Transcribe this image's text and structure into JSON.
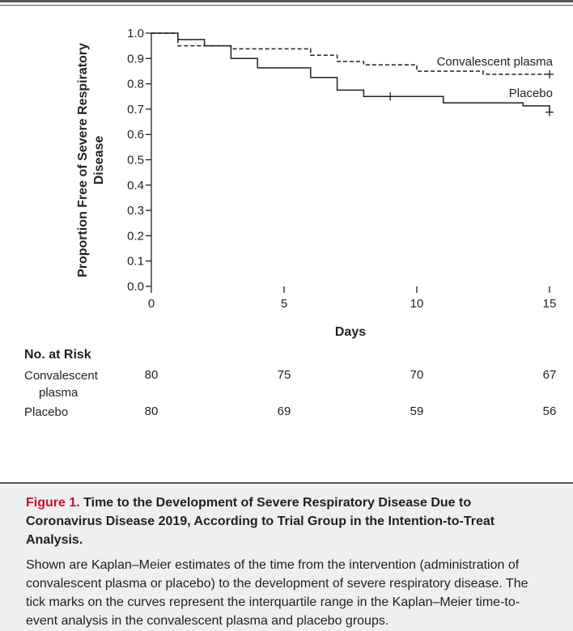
{
  "chart_data": {
    "type": "line",
    "subtype": "kaplan-meier step curves",
    "xlabel": "Days",
    "ylabel": "Proportion Free of Severe Respiratory Disease",
    "xlim": [
      0,
      15
    ],
    "ylim": [
      0,
      1.0
    ],
    "x_ticks": [
      "0",
      "5",
      "10",
      "15"
    ],
    "y_ticks": [
      "0.0",
      "0.1",
      "0.2",
      "0.3",
      "0.4",
      "0.5",
      "0.6",
      "0.7",
      "0.8",
      "0.9",
      "1.0"
    ],
    "grid": false,
    "series": [
      {
        "name": "Convalescent plasma",
        "style": "dashed",
        "color": "#231f20",
        "steps": [
          [
            0,
            1.0
          ],
          [
            1,
            0.95
          ],
          [
            3,
            0.938
          ],
          [
            6,
            0.913
          ],
          [
            7,
            0.888
          ],
          [
            8,
            0.875
          ],
          [
            10,
            0.85
          ],
          [
            12.5,
            0.838
          ],
          [
            15,
            0.838
          ]
        ],
        "censor_marks": [
          [
            15,
            0.838
          ]
        ]
      },
      {
        "name": "Placebo",
        "style": "solid",
        "color": "#231f20",
        "steps": [
          [
            0,
            1.0
          ],
          [
            1,
            0.975
          ],
          [
            2,
            0.95
          ],
          [
            3,
            0.9
          ],
          [
            4,
            0.863
          ],
          [
            6,
            0.825
          ],
          [
            7,
            0.775
          ],
          [
            8,
            0.75
          ],
          [
            11,
            0.725
          ],
          [
            14,
            0.713
          ],
          [
            15,
            0.688
          ]
        ],
        "censor_marks": [
          [
            9,
            0.75
          ],
          [
            15,
            0.688
          ]
        ]
      }
    ]
  },
  "risk_table": {
    "title": "No. at Risk",
    "rows": [
      {
        "label_line1": "Convalescent",
        "label_line2": "plasma",
        "values": [
          "80",
          "75",
          "70",
          "67"
        ]
      },
      {
        "label_line1": "Placebo",
        "label_line2": "",
        "values": [
          "80",
          "69",
          "59",
          "56"
        ]
      }
    ]
  },
  "caption": {
    "figure_label": "Figure 1.",
    "title": "Time to the Development of Severe Respiratory Disease Due to Coronavirus Disease 2019, According to Trial Group in the Intention-to-Treat Analysis.",
    "text": "Shown are Kaplan–Meier estimates of the time from the intervention (administration of convalescent plasma or placebo) to the development of severe respiratory disease. The tick marks on the curves represent the interquartile range in the Kaplan–Meier time-to-event analysis in the convalescent plasma and placebo groups."
  }
}
